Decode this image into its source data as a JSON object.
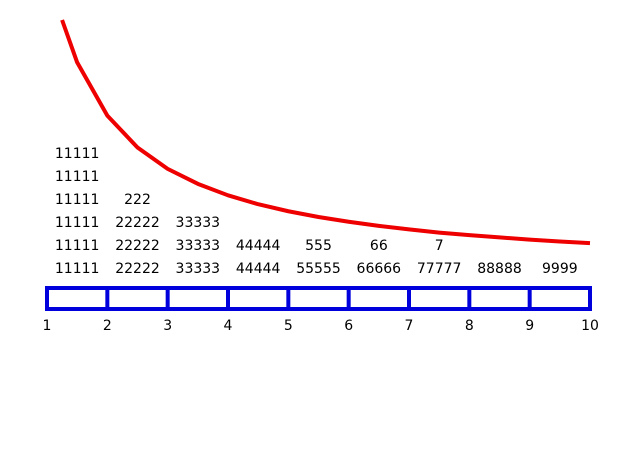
{
  "chart_data": {
    "type": "line",
    "x": [
      1.25,
      1.5,
      2,
      2.5,
      3,
      3.5,
      4,
      4.5,
      5,
      5.5,
      6,
      6.5,
      7,
      7.5,
      8,
      8.5,
      9,
      9.5,
      10
    ],
    "values": [
      0.8,
      0.667,
      0.5,
      0.4,
      0.333,
      0.286,
      0.25,
      0.222,
      0.2,
      0.182,
      0.167,
      0.154,
      0.143,
      0.133,
      0.125,
      0.118,
      0.111,
      0.105,
      0.1
    ],
    "color": "#ee0000",
    "box_color": "#0000dd",
    "xlim": [
      1,
      10
    ],
    "ylim": [
      0,
      0.8
    ],
    "xticks": [
      1,
      2,
      3,
      4,
      5,
      6,
      7,
      8,
      9,
      10
    ],
    "columns": [
      [
        "11111",
        "11111",
        "11111",
        "11111",
        "11111",
        "11111"
      ],
      [
        "22222",
        "22222",
        "22222",
        "222"
      ],
      [
        "33333",
        "33333",
        "33333"
      ],
      [
        "44444",
        "44444"
      ],
      [
        "55555",
        "555"
      ],
      [
        "66666",
        "66"
      ],
      [
        "77777",
        "7"
      ],
      [
        "88888"
      ],
      [
        "9999"
      ]
    ]
  }
}
